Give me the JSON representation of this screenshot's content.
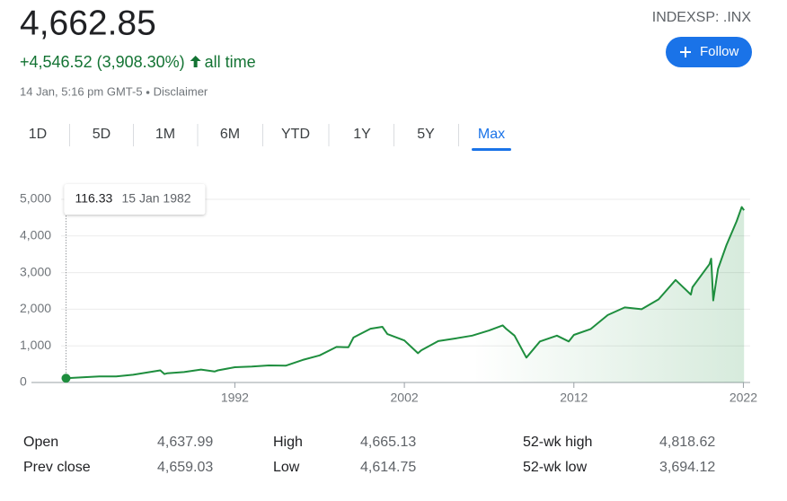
{
  "header": {
    "price": "4,662.85",
    "change": "+4,546.52 (3,908.30%)",
    "change_period": "all time",
    "timestamp": "14 Jan, 5:16 pm GMT-5",
    "disclaimer": "Disclaimer",
    "ticker": "INDEXSP: .INX",
    "follow": "Follow"
  },
  "tabs": {
    "items": [
      "1D",
      "5D",
      "1M",
      "6M",
      "YTD",
      "1Y",
      "5Y",
      "Max"
    ],
    "selected": 7
  },
  "chart_data": {
    "type": "line",
    "x": [
      1982.04,
      1983,
      1984,
      1985,
      1986,
      1987.6,
      1987.85,
      1988,
      1989,
      1990,
      1990.8,
      1991,
      1992,
      1993,
      1994,
      1995,
      1996,
      1997,
      1998,
      1998.7,
      1999,
      2000,
      2000.7,
      2001,
      2002,
      2002.8,
      2003,
      2004,
      2005,
      2006,
      2007,
      2007.8,
      2008,
      2008.5,
      2009.2,
      2010,
      2011,
      2011.7,
      2012,
      2013,
      2014,
      2015,
      2016,
      2017,
      2018,
      2018.9,
      2019,
      2020,
      2020.1,
      2020.22,
      2020.5,
      2021,
      2021.6,
      2021.9,
      2022.04
    ],
    "series": [
      {
        "color": "#1e8e3e",
        "values": [
          116.33,
          140,
          165,
          167,
          211,
          330,
          230,
          250,
          285,
          353,
          300,
          330,
          417,
          435,
          466,
          459,
          615,
          740,
          970,
          960,
          1229,
          1469,
          1520,
          1320,
          1148,
          800,
          880,
          1130,
          1200,
          1280,
          1420,
          1560,
          1468,
          1280,
          680,
          1120,
          1280,
          1120,
          1300,
          1460,
          1840,
          2050,
          2000,
          2270,
          2800,
          2400,
          2600,
          3230,
          3380,
          2240,
          3100,
          3750,
          4400,
          4790,
          4700
        ]
      }
    ],
    "tooltip_date": "15 Jan 1982",
    "xlim": [
      1980,
      2022.4
    ],
    "xticks": [
      1992,
      2002,
      2012,
      2022
    ],
    "ylim": [
      0,
      5000
    ],
    "yticks": [
      0,
      {
        "value": 1000,
        "label": "1,000"
      },
      {
        "value": 2000,
        "label": "2,000"
      },
      {
        "value": 3000,
        "label": "3,000"
      },
      {
        "value": 4000,
        "label": "4,000"
      },
      {
        "value": 5000,
        "label": "5,000"
      }
    ],
    "grid": true
  },
  "stats": [
    [
      "Open",
      "4,637.99"
    ],
    [
      "High",
      "4,665.13"
    ],
    [
      "52-wk high",
      "4,818.62"
    ],
    [
      "Prev close",
      "4,659.03"
    ],
    [
      "Low",
      "4,614.75"
    ],
    [
      "52-wk low",
      "3,694.12"
    ]
  ]
}
